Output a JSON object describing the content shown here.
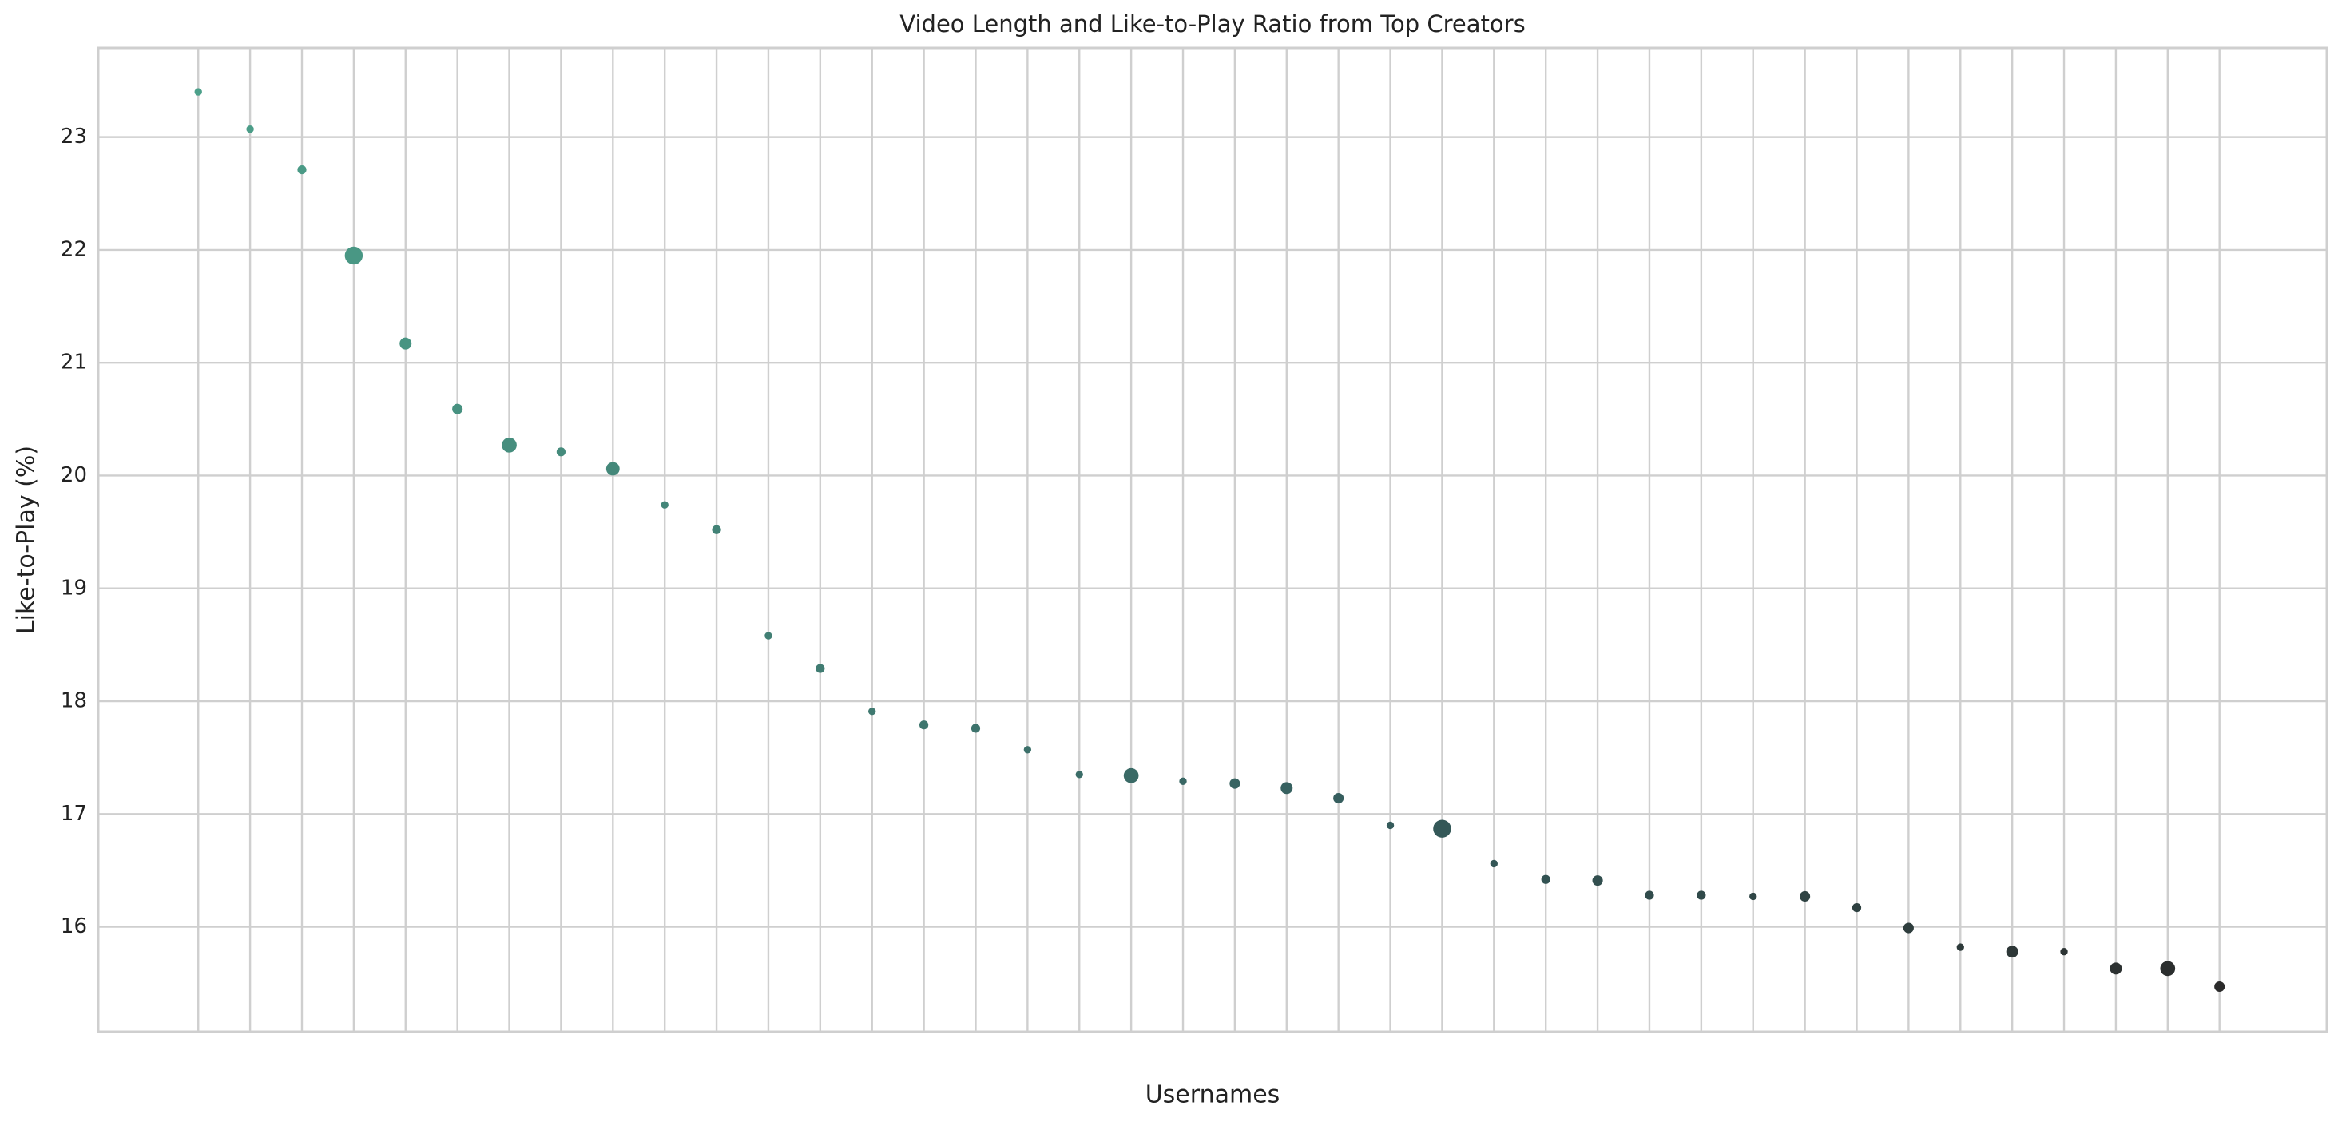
{
  "chart_data": {
    "type": "scatter",
    "title": "Video Length and Like-to-Play Ratio from Top Creators",
    "xlabel": "Usernames",
    "ylabel": "Like-to-Play (%)",
    "categories": [
      null,
      null,
      null,
      null,
      null,
      null,
      null,
      null,
      null,
      null,
      null,
      null,
      null,
      null,
      null,
      null,
      null,
      null,
      null,
      null,
      null,
      null,
      null,
      null,
      null,
      null,
      null,
      null,
      null,
      null,
      null,
      null,
      null,
      null,
      null,
      null,
      null,
      null,
      null,
      null
    ],
    "values": [
      23.4,
      23.07,
      22.71,
      21.95,
      21.17,
      20.59,
      20.27,
      20.21,
      20.06,
      19.74,
      19.52,
      18.58,
      18.29,
      17.91,
      17.79,
      17.76,
      17.57,
      17.35,
      17.34,
      17.29,
      17.27,
      17.23,
      17.14,
      16.9,
      16.87,
      16.56,
      16.42,
      16.41,
      16.28,
      16.28,
      16.27,
      16.27,
      16.17,
      15.99,
      15.82,
      15.78,
      15.78,
      15.63,
      15.63,
      15.47
    ],
    "sizes": [
      2.5,
      2.5,
      3,
      6,
      4,
      3.5,
      5,
      3,
      4.5,
      2.5,
      3,
      2.5,
      3,
      2.5,
      3,
      3,
      2.5,
      2.5,
      5,
      2.5,
      3.5,
      4,
      3.5,
      2.5,
      6,
      2.5,
      3,
      3.5,
      3,
      3,
      2.5,
      3.5,
      3,
      3.5,
      2.5,
      4,
      2.5,
      4,
      5,
      3.5
    ],
    "colors": [
      "#4ca08a",
      "#4b9d88",
      "#4a9a86",
      "#499784",
      "#489482",
      "#479180",
      "#468e7e",
      "#458b7c",
      "#44887a",
      "#438578",
      "#428276",
      "#417f74",
      "#407c72",
      "#3f7970",
      "#3e766e",
      "#3d736c",
      "#3c706a",
      "#3b6d68",
      "#3a6a66",
      "#396764",
      "#386462",
      "#376160",
      "#365e5e",
      "#355b5b",
      "#345858",
      "#335555",
      "#325252",
      "#324f4f",
      "#314c4c",
      "#304949",
      "#2f4646",
      "#2f4343",
      "#2e4040",
      "#2e3d3d",
      "#2d3a3a",
      "#2d3737",
      "#2c3434",
      "#2c3131",
      "#2b2e2e",
      "#2b2b2b"
    ],
    "ylim": [
      15.07,
      23.79
    ],
    "yticks": [
      16,
      17,
      18,
      19,
      20,
      21,
      22,
      23
    ],
    "grid": true
  }
}
